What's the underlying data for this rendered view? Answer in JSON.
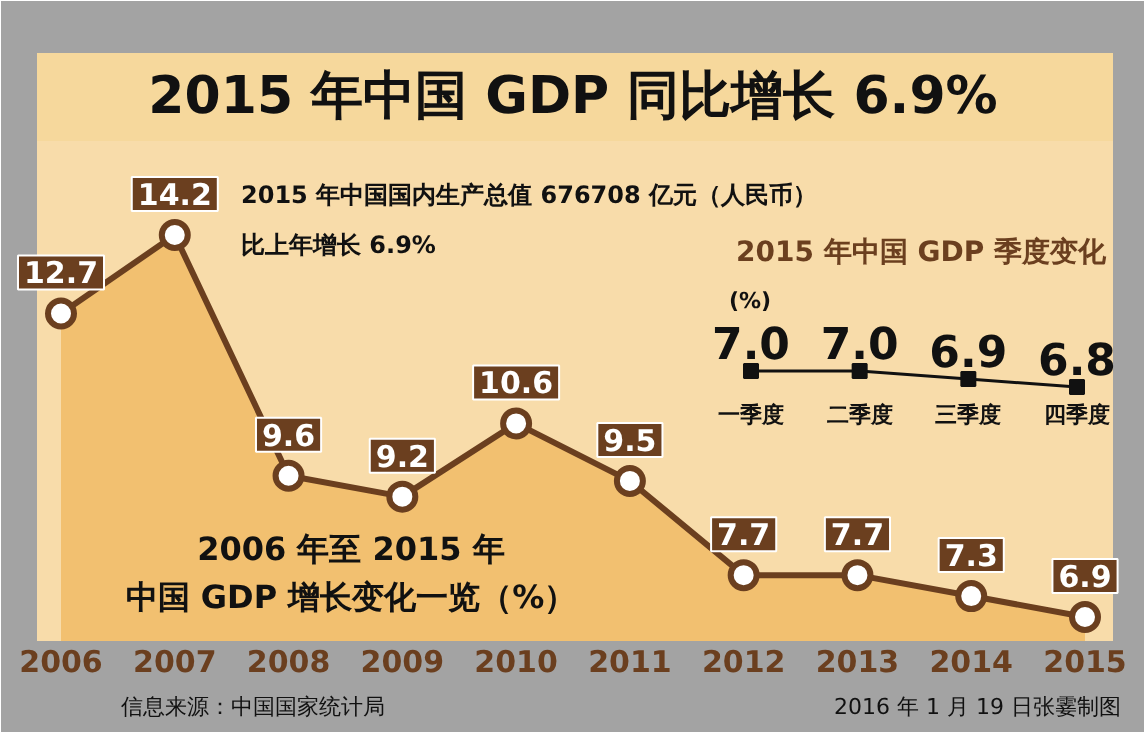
{
  "chart_data": [
    {
      "type": "area",
      "title": "2015 年中国 GDP 同比增长 6.9%",
      "categories": [
        "2006",
        "2007",
        "2008",
        "2009",
        "2010",
        "2011",
        "2012",
        "2013",
        "2014",
        "2015"
      ],
      "series": [
        {
          "color": "#f2c070",
          "values": [
            12.7,
            14.2,
            9.6,
            9.2,
            10.6,
            9.5,
            7.7,
            7.7,
            7.3,
            6.9
          ]
        }
      ],
      "data_labels": true,
      "marker": "circle",
      "annotations": [
        "2015 年中国国内生产总值 676708 亿元（人民币）",
        "比上年增长 6.9%",
        "2006 年至 2015 年",
        "中国 GDP 增长变化一览（%）",
        "信息来源：中国国家统计局",
        "2016 年 1 月 19 日张霎制图"
      ]
    },
    {
      "type": "line",
      "title": "2015 年中国 GDP 季度变化",
      "ylabel": "(%)",
      "categories": [
        "一季度",
        "二季度",
        "三季度",
        "四季度"
      ],
      "series": [
        {
          "color": "#111111",
          "values": [
            7.0,
            7.0,
            6.9,
            6.8
          ],
          "value_labels": [
            "7.0",
            "7.0",
            "6.9",
            "6.8"
          ]
        }
      ],
      "marker": "square"
    }
  ]
}
